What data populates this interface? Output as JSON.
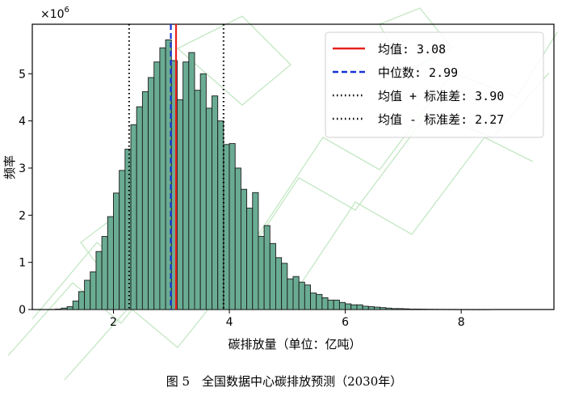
{
  "chart_data": {
    "type": "bar",
    "title": "",
    "xlabel": "碳排放量（单位：亿吨）",
    "ylabel": "频率",
    "y_scale_label": "×10",
    "y_scale_exponent": "6",
    "xlim": [
      0.6,
      9.6
    ],
    "ylim": [
      0,
      6.05
    ],
    "xticks": [
      2,
      4,
      6,
      8
    ],
    "xtick_labels": [
      "2",
      "4",
      "6",
      "8"
    ],
    "yticks": [
      0,
      1,
      2,
      3,
      4,
      5
    ],
    "ytick_labels": [
      "0",
      "1",
      "2",
      "3",
      "4",
      "5"
    ],
    "bin_width": 0.1,
    "bins_x": [
      0.9,
      1.0,
      1.1,
      1.2,
      1.3,
      1.4,
      1.5,
      1.6,
      1.7,
      1.8,
      1.9,
      2.0,
      2.1,
      2.2,
      2.3,
      2.4,
      2.5,
      2.6,
      2.7,
      2.8,
      2.9,
      3.0,
      3.1,
      3.2,
      3.3,
      3.4,
      3.5,
      3.6,
      3.7,
      3.8,
      3.9,
      4.0,
      4.1,
      4.2,
      4.3,
      4.4,
      4.5,
      4.6,
      4.7,
      4.8,
      4.9,
      5.0,
      5.1,
      5.2,
      5.3,
      5.4,
      5.5,
      5.6,
      5.7,
      5.8,
      5.9,
      6.0,
      6.1,
      6.2,
      6.3,
      6.4,
      6.5,
      6.6,
      6.7,
      6.8,
      6.9,
      7.0,
      7.1,
      7.2,
      7.3,
      7.4,
      7.5,
      7.6,
      7.7,
      7.8,
      7.9,
      8.0,
      8.1,
      8.2,
      8.3,
      8.4,
      8.5,
      8.6,
      8.7,
      8.8,
      8.9,
      9.0,
      9.1,
      9.2,
      9.3,
      9.4
    ],
    "values": [
      0.0,
      0.01,
      0.03,
      0.06,
      0.18,
      0.38,
      0.62,
      0.8,
      1.23,
      1.55,
      1.97,
      2.47,
      2.95,
      3.4,
      3.92,
      4.3,
      4.62,
      4.92,
      5.25,
      5.55,
      5.72,
      5.28,
      4.45,
      5.25,
      5.45,
      4.65,
      5.0,
      4.27,
      4.53,
      4.0,
      3.5,
      3.52,
      3.0,
      2.55,
      2.15,
      2.48,
      1.55,
      1.78,
      1.4,
      1.1,
      0.98,
      0.65,
      0.7,
      0.58,
      0.52,
      0.35,
      0.32,
      0.25,
      0.2,
      0.2,
      0.15,
      0.12,
      0.1,
      0.1,
      0.07,
      0.06,
      0.05,
      0.04,
      0.03,
      0.02,
      0.02,
      0.015,
      0.01,
      0.01,
      0.008,
      0.006,
      0.005,
      0.004,
      0.003,
      0.003,
      0.002,
      0.002,
      0.001,
      0.001,
      0.001,
      0.001,
      0.0,
      0.0,
      0.0,
      0.0,
      0.0,
      0.0,
      0.0,
      0.0,
      0.0,
      0.0
    ],
    "bar_color": "#6aac93",
    "bar_edge_color": "#1a1a1a",
    "grid": false,
    "legend_placement": "top-right",
    "lines": [
      {
        "label": "均值: 3.08",
        "x": 3.08,
        "color": "#e8211d",
        "style": "solid"
      },
      {
        "label": "中位数: 2.99",
        "x": 2.99,
        "color": "#1533d6",
        "style": "dashed"
      },
      {
        "label": "均值 + 标准差: 3.90",
        "x": 3.9,
        "color": "#000000",
        "style": "dotted"
      },
      {
        "label": "均值 - 标准差: 2.27",
        "x": 2.27,
        "color": "#000000",
        "style": "dotted"
      }
    ]
  },
  "caption": "图 5　全国数据中心碳排放预测（2030年）"
}
